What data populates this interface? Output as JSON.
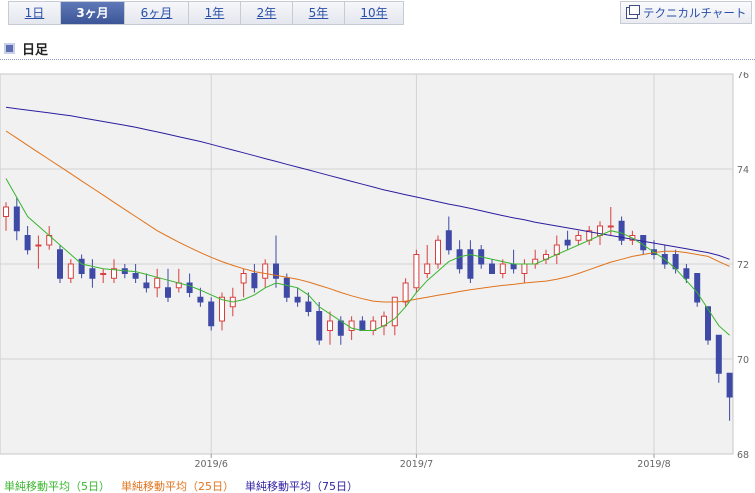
{
  "tabs": [
    {
      "label": "1日",
      "active": false
    },
    {
      "label": "3ヶ月",
      "active": true
    },
    {
      "label": "6ヶ月",
      "active": false
    },
    {
      "label": "1年",
      "active": false
    },
    {
      "label": "2年",
      "active": false
    },
    {
      "label": "5年",
      "active": false
    },
    {
      "label": "10年",
      "active": false
    }
  ],
  "technical_chart_button": "テクニカルチャート",
  "period_label": "日足",
  "colors": {
    "up_candle": "#d84040",
    "down_candle": "#3e4aa6",
    "ma5": "#39b52e",
    "ma25": "#e0731c",
    "ma75": "#2c1ea0",
    "plot_background": "#f1f1f1",
    "grid": "#d2d2d2"
  },
  "chart_data": {
    "type": "candlestick",
    "x_tick_labels": [
      "2019/6",
      "2019/7",
      "2019/8"
    ],
    "y_ticks": [
      "68",
      "70",
      "72",
      "74",
      "76"
    ],
    "ylim": [
      68,
      76
    ],
    "legend": [
      {
        "name": "単純移動平均（5日）",
        "color": "#39b52e"
      },
      {
        "name": "単純移動平均（25日）",
        "color": "#e0731c"
      },
      {
        "name": "単純移動平均（75日）",
        "color": "#2c1ea0"
      }
    ],
    "tick_index": [
      19,
      38,
      60
    ],
    "candles": [
      [
        73.0,
        73.3,
        72.7,
        73.2
      ],
      [
        73.2,
        73.4,
        72.5,
        72.7
      ],
      [
        72.6,
        72.8,
        72.2,
        72.3
      ],
      [
        72.4,
        72.6,
        71.9,
        72.4
      ],
      [
        72.4,
        72.8,
        72.3,
        72.6
      ],
      [
        72.3,
        72.4,
        71.6,
        71.7
      ],
      [
        71.7,
        72.1,
        71.6,
        72.0
      ],
      [
        72.1,
        72.2,
        71.7,
        71.8
      ],
      [
        71.9,
        72.1,
        71.5,
        71.7
      ],
      [
        71.8,
        71.9,
        71.6,
        71.8
      ],
      [
        71.7,
        72.1,
        71.6,
        71.9
      ],
      [
        71.9,
        72.0,
        71.7,
        71.8
      ],
      [
        71.8,
        72.0,
        71.6,
        71.7
      ],
      [
        71.6,
        71.8,
        71.4,
        71.5
      ],
      [
        71.5,
        71.9,
        71.3,
        71.7
      ],
      [
        71.5,
        71.9,
        71.2,
        71.3
      ],
      [
        71.5,
        71.9,
        71.4,
        71.6
      ],
      [
        71.6,
        71.8,
        71.3,
        71.4
      ],
      [
        71.3,
        71.5,
        71.1,
        71.2
      ],
      [
        71.2,
        71.3,
        70.6,
        70.7
      ],
      [
        70.8,
        71.4,
        70.6,
        71.3
      ],
      [
        71.1,
        71.5,
        70.9,
        71.3
      ],
      [
        71.6,
        71.9,
        71.3,
        71.8
      ],
      [
        71.8,
        72.0,
        71.4,
        71.5
      ],
      [
        71.7,
        72.1,
        71.5,
        72.0
      ],
      [
        72.0,
        72.6,
        71.5,
        71.7
      ],
      [
        71.7,
        71.8,
        71.2,
        71.3
      ],
      [
        71.3,
        71.5,
        71.1,
        71.2
      ],
      [
        71.2,
        71.4,
        70.9,
        71.0
      ],
      [
        71.0,
        71.2,
        70.3,
        70.4
      ],
      [
        70.6,
        71.0,
        70.3,
        70.8
      ],
      [
        70.8,
        70.9,
        70.3,
        70.5
      ],
      [
        70.6,
        70.9,
        70.4,
        70.8
      ],
      [
        70.8,
        70.9,
        70.6,
        70.6
      ],
      [
        70.6,
        70.9,
        70.5,
        70.8
      ],
      [
        70.7,
        71.0,
        70.5,
        70.9
      ],
      [
        70.7,
        71.3,
        70.5,
        71.3
      ],
      [
        71.2,
        71.7,
        71.1,
        71.6
      ],
      [
        71.5,
        72.3,
        71.4,
        72.2
      ],
      [
        71.8,
        72.4,
        71.7,
        72.0
      ],
      [
        72.0,
        72.6,
        71.9,
        72.5
      ],
      [
        72.7,
        73.0,
        72.2,
        72.3
      ],
      [
        72.3,
        72.5,
        71.8,
        71.9
      ],
      [
        72.3,
        72.5,
        71.6,
        71.7
      ],
      [
        72.3,
        72.4,
        71.9,
        72.0
      ],
      [
        72.0,
        72.1,
        71.8,
        71.8
      ],
      [
        71.8,
        72.1,
        71.7,
        72.0
      ],
      [
        72.0,
        72.3,
        71.8,
        71.9
      ],
      [
        71.8,
        72.1,
        71.6,
        72.0
      ],
      [
        72.0,
        72.3,
        71.9,
        72.1
      ],
      [
        72.1,
        72.3,
        72.0,
        72.2
      ],
      [
        72.2,
        72.6,
        72.0,
        72.4
      ],
      [
        72.5,
        72.7,
        72.3,
        72.4
      ],
      [
        72.5,
        72.7,
        72.4,
        72.6
      ],
      [
        72.5,
        72.8,
        72.4,
        72.7
      ],
      [
        72.6,
        72.9,
        72.4,
        72.8
      ],
      [
        72.8,
        73.2,
        72.6,
        72.8
      ],
      [
        72.9,
        73.0,
        72.4,
        72.5
      ],
      [
        72.5,
        72.7,
        72.4,
        72.6
      ],
      [
        72.6,
        72.6,
        72.2,
        72.3
      ],
      [
        72.3,
        72.5,
        72.1,
        72.2
      ],
      [
        72.2,
        72.4,
        71.9,
        72.0
      ],
      [
        72.2,
        72.3,
        71.8,
        71.9
      ],
      [
        71.9,
        72.0,
        71.6,
        71.7
      ],
      [
        71.8,
        71.8,
        71.1,
        71.2
      ],
      [
        71.1,
        71.1,
        70.3,
        70.4
      ],
      [
        70.5,
        70.5,
        69.5,
        69.7
      ],
      [
        69.7,
        69.7,
        68.7,
        69.2
      ]
    ],
    "ma5": [
      73.8,
      73.4,
      73.0,
      72.8,
      72.6,
      72.4,
      72.2,
      72.0,
      71.95,
      71.9,
      71.88,
      71.86,
      71.84,
      71.78,
      71.72,
      71.66,
      71.6,
      71.54,
      71.45,
      71.35,
      71.25,
      71.2,
      71.25,
      71.35,
      71.5,
      71.6,
      71.55,
      71.5,
      71.35,
      71.1,
      70.95,
      70.8,
      70.65,
      70.6,
      70.6,
      70.7,
      70.85,
      71.1,
      71.4,
      71.65,
      71.85,
      72.05,
      72.15,
      72.2,
      72.15,
      72.1,
      72.05,
      72.0,
      72.0,
      72.0,
      72.1,
      72.2,
      72.3,
      72.4,
      72.5,
      72.6,
      72.7,
      72.65,
      72.55,
      72.4,
      72.25,
      72.1,
      71.9,
      71.65,
      71.4,
      71.05,
      70.7,
      70.5
    ],
    "ma25": [
      74.8,
      74.65,
      74.5,
      74.35,
      74.2,
      74.05,
      73.9,
      73.75,
      73.6,
      73.45,
      73.3,
      73.15,
      73.0,
      72.85,
      72.7,
      72.58,
      72.46,
      72.35,
      72.24,
      72.14,
      72.05,
      71.97,
      71.9,
      71.84,
      71.8,
      71.76,
      71.72,
      71.68,
      71.62,
      71.55,
      71.48,
      71.4,
      71.33,
      71.27,
      71.22,
      71.2,
      71.2,
      71.22,
      71.26,
      71.3,
      71.34,
      71.38,
      71.42,
      71.46,
      71.49,
      71.52,
      71.55,
      71.57,
      71.6,
      71.62,
      71.64,
      71.68,
      71.73,
      71.8,
      71.88,
      71.96,
      72.04,
      72.1,
      72.16,
      72.2,
      72.24,
      72.27,
      72.27,
      72.24,
      72.2,
      72.16,
      72.05,
      71.95
    ],
    "ma75": [
      75.3,
      75.27,
      75.24,
      75.21,
      75.18,
      75.15,
      75.12,
      75.08,
      75.04,
      75.0,
      74.96,
      74.92,
      74.88,
      74.83,
      74.78,
      74.73,
      74.68,
      74.63,
      74.58,
      74.52,
      74.46,
      74.4,
      74.34,
      74.28,
      74.22,
      74.16,
      74.1,
      74.04,
      73.98,
      73.92,
      73.86,
      73.8,
      73.74,
      73.68,
      73.62,
      73.56,
      73.51,
      73.46,
      73.41,
      73.36,
      73.31,
      73.26,
      73.22,
      73.17,
      73.12,
      73.07,
      73.02,
      72.97,
      72.93,
      72.88,
      72.84,
      72.8,
      72.76,
      72.72,
      72.68,
      72.64,
      72.6,
      72.56,
      72.52,
      72.48,
      72.44,
      72.4,
      72.36,
      72.32,
      72.28,
      72.24,
      72.18,
      72.1
    ]
  }
}
